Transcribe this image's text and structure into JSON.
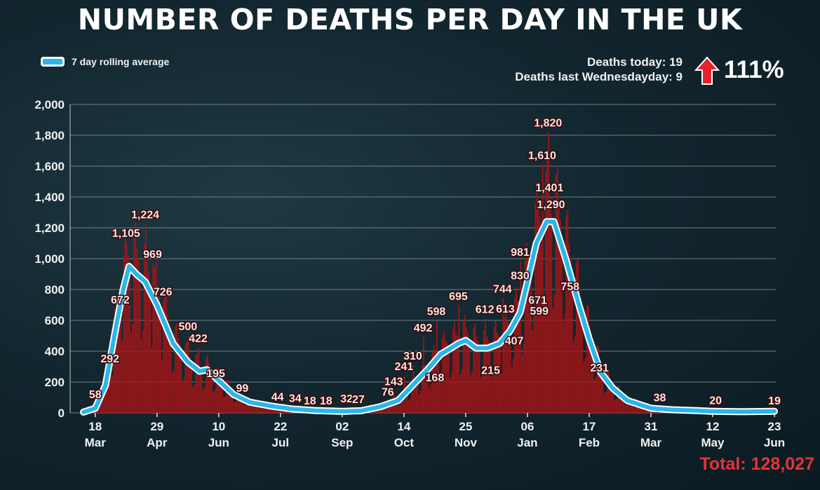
{
  "title": "NUMBER OF DEATHS PER DAY IN THE UK",
  "legend": {
    "label": "7 day rolling average",
    "color": "#29b7ea"
  },
  "stats": {
    "today": "Deaths today: 19",
    "last_week": "Deaths last Wednesdayday: 9",
    "change": "111%",
    "arrow_color": "#e8222a"
  },
  "total": "Total: 128,027",
  "colors": {
    "bars": "#a51416",
    "line": "#29b7ea",
    "line_edge": "#ffffff",
    "grid": "#8a9ca3"
  },
  "chart_data": {
    "type": "bar",
    "title": "NUMBER OF DEATHS PER DAY IN THE UK",
    "xlabel": "",
    "ylabel": "",
    "ylim": [
      0,
      2000
    ],
    "yticks": [
      0,
      200,
      400,
      600,
      800,
      1000,
      1200,
      1400,
      1600,
      1800,
      2000
    ],
    "ytick_labels": [
      "0",
      "200",
      "400",
      "600",
      "800",
      "1,000",
      "1,200",
      "1,400",
      "1,600",
      "1,800",
      "2,000"
    ],
    "x_range": [
      "2020-03-10",
      "2021-06-23"
    ],
    "xticks": [
      {
        "date": "2020-03-18",
        "label1": "18",
        "label2": "Mar"
      },
      {
        "date": "2020-04-29",
        "label1": "29",
        "label2": "Apr"
      },
      {
        "date": "2020-06-10",
        "label1": "10",
        "label2": "Jun"
      },
      {
        "date": "2020-07-22",
        "label1": "22",
        "label2": "Jul"
      },
      {
        "date": "2020-09-02",
        "label1": "02",
        "label2": "Sep"
      },
      {
        "date": "2020-10-14",
        "label1": "14",
        "label2": "Oct"
      },
      {
        "date": "2020-11-25",
        "label1": "25",
        "label2": "Nov"
      },
      {
        "date": "2021-01-06",
        "label1": "06",
        "label2": "Jan"
      },
      {
        "date": "2021-02-17",
        "label1": "17",
        "label2": "Feb"
      },
      {
        "date": "2021-03-31",
        "label1": "31",
        "label2": "Mar"
      },
      {
        "date": "2021-05-12",
        "label1": "12",
        "label2": "May"
      },
      {
        "date": "2021-06-23",
        "label1": "23",
        "label2": "Jun"
      }
    ],
    "rolling_average": {
      "name": "7 day rolling average",
      "points": [
        [
          "2020-03-10",
          5
        ],
        [
          "2020-03-18",
          30
        ],
        [
          "2020-03-25",
          180
        ],
        [
          "2020-04-01",
          550
        ],
        [
          "2020-04-06",
          800
        ],
        [
          "2020-04-10",
          950
        ],
        [
          "2020-04-15",
          900
        ],
        [
          "2020-04-21",
          850
        ],
        [
          "2020-04-29",
          700
        ],
        [
          "2020-05-10",
          450
        ],
        [
          "2020-05-20",
          330
        ],
        [
          "2020-05-28",
          270
        ],
        [
          "2020-06-02",
          280
        ],
        [
          "2020-06-10",
          210
        ],
        [
          "2020-06-20",
          120
        ],
        [
          "2020-07-01",
          70
        ],
        [
          "2020-07-15",
          45
        ],
        [
          "2020-07-30",
          25
        ],
        [
          "2020-08-15",
          15
        ],
        [
          "2020-09-02",
          10
        ],
        [
          "2020-09-15",
          14
        ],
        [
          "2020-09-28",
          40
        ],
        [
          "2020-10-10",
          80
        ],
        [
          "2020-10-20",
          180
        ],
        [
          "2020-10-30",
          280
        ],
        [
          "2020-11-08",
          380
        ],
        [
          "2020-11-15",
          420
        ],
        [
          "2020-11-20",
          450
        ],
        [
          "2020-11-25",
          470
        ],
        [
          "2020-12-02",
          420
        ],
        [
          "2020-12-10",
          420
        ],
        [
          "2020-12-18",
          450
        ],
        [
          "2020-12-25",
          530
        ],
        [
          "2021-01-01",
          650
        ],
        [
          "2021-01-06",
          850
        ],
        [
          "2021-01-12",
          1100
        ],
        [
          "2021-01-19",
          1240
        ],
        [
          "2021-01-24",
          1240
        ],
        [
          "2021-02-01",
          1000
        ],
        [
          "2021-02-10",
          700
        ],
        [
          "2021-02-17",
          480
        ],
        [
          "2021-02-25",
          260
        ],
        [
          "2021-03-05",
          160
        ],
        [
          "2021-03-15",
          80
        ],
        [
          "2021-03-31",
          30
        ],
        [
          "2021-04-15",
          20
        ],
        [
          "2021-05-01",
          15
        ],
        [
          "2021-05-12",
          10
        ],
        [
          "2021-06-01",
          8
        ],
        [
          "2021-06-23",
          10
        ]
      ]
    },
    "data_labels": [
      {
        "date": "2020-03-18",
        "value": 58,
        "label": "58"
      },
      {
        "date": "2020-03-28",
        "value": 292,
        "label": "292"
      },
      {
        "date": "2020-04-04",
        "value": 672,
        "label": "672"
      },
      {
        "date": "2020-04-08",
        "value": 1105,
        "label": "1,105"
      },
      {
        "date": "2020-04-21",
        "value": 1224,
        "label": "1,224"
      },
      {
        "date": "2020-04-26",
        "value": 969,
        "label": "969"
      },
      {
        "date": "2020-05-03",
        "value": 726,
        "label": "726"
      },
      {
        "date": "2020-05-20",
        "value": 500,
        "label": "500"
      },
      {
        "date": "2020-05-27",
        "value": 422,
        "label": "422"
      },
      {
        "date": "2020-06-08",
        "value": 195,
        "label": "195"
      },
      {
        "date": "2020-06-26",
        "value": 99,
        "label": "99"
      },
      {
        "date": "2020-07-20",
        "value": 44,
        "label": "44"
      },
      {
        "date": "2020-08-01",
        "value": 34,
        "label": "34"
      },
      {
        "date": "2020-08-11",
        "value": 18,
        "label": "18"
      },
      {
        "date": "2020-08-22",
        "value": 18,
        "label": "18"
      },
      {
        "date": "2020-09-05",
        "value": 32,
        "label": "32"
      },
      {
        "date": "2020-09-13",
        "value": 27,
        "label": "27"
      },
      {
        "date": "2020-10-03",
        "value": 76,
        "label": "76"
      },
      {
        "date": "2020-10-07",
        "value": 143,
        "label": "143"
      },
      {
        "date": "2020-10-14",
        "value": 241,
        "label": "241"
      },
      {
        "date": "2020-10-20",
        "value": 310,
        "label": "310"
      },
      {
        "date": "2020-10-27",
        "value": 492,
        "label": "492"
      },
      {
        "date": "2020-11-04",
        "value": 168,
        "label": "168"
      },
      {
        "date": "2020-11-05",
        "value": 598,
        "label": "598"
      },
      {
        "date": "2020-11-20",
        "value": 695,
        "label": "695"
      },
      {
        "date": "2020-12-08",
        "value": 612,
        "label": "612"
      },
      {
        "date": "2020-12-12",
        "value": 215,
        "label": "215"
      },
      {
        "date": "2020-12-20",
        "value": 744,
        "label": "744"
      },
      {
        "date": "2020-12-22",
        "value": 613,
        "label": "613"
      },
      {
        "date": "2020-12-28",
        "value": 407,
        "label": "407"
      },
      {
        "date": "2021-01-01",
        "value": 981,
        "label": "981"
      },
      {
        "date": "2021-01-01",
        "value": 830,
        "label": "830"
      },
      {
        "date": "2021-01-13",
        "value": 671,
        "label": "671"
      },
      {
        "date": "2021-01-14",
        "value": 599,
        "label": "599"
      },
      {
        "date": "2021-01-16",
        "value": 1610,
        "label": "1,610"
      },
      {
        "date": "2021-01-20",
        "value": 1820,
        "label": "1,820"
      },
      {
        "date": "2021-01-21",
        "value": 1401,
        "label": "1,401"
      },
      {
        "date": "2021-01-22",
        "value": 1290,
        "label": "1,290"
      },
      {
        "date": "2021-02-04",
        "value": 758,
        "label": "758"
      },
      {
        "date": "2021-02-24",
        "value": 231,
        "label": "231"
      },
      {
        "date": "2021-04-06",
        "value": 38,
        "label": "38"
      },
      {
        "date": "2021-05-14",
        "value": 20,
        "label": "20"
      },
      {
        "date": "2021-06-23",
        "value": 19,
        "label": "19"
      }
    ],
    "grid": true,
    "legend_position": "top-left"
  }
}
